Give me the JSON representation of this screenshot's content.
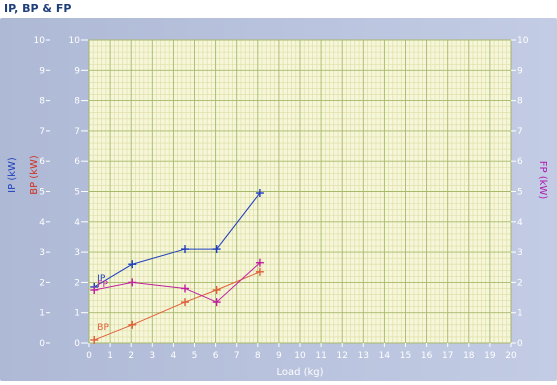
{
  "title": "IP, BP & FP",
  "chart_data": {
    "type": "line",
    "title": "IP, BP & FP",
    "xlabel": "Load (kg)",
    "xlim": [
      0,
      20
    ],
    "x_ticks": [
      "0",
      "1",
      "2",
      "3",
      "4",
      "5",
      "6",
      "7",
      "8",
      "9",
      "10",
      "11",
      "12",
      "13",
      "14",
      "15",
      "16",
      "17",
      "18",
      "19",
      "20"
    ],
    "y_ticks": [
      "0",
      "1",
      "2",
      "3",
      "4",
      "5",
      "6",
      "7",
      "8",
      "9",
      "10"
    ],
    "axes": [
      {
        "id": "ip",
        "label": "IP (kW)",
        "side": "left-outer",
        "ylim": [
          0,
          10
        ],
        "color": "#1f3fbf"
      },
      {
        "id": "bp",
        "label": "BP (kW)",
        "side": "left-inner",
        "ylim": [
          0,
          10
        ],
        "color": "#d03020"
      },
      {
        "id": "fp",
        "label": "FP (kW)",
        "side": "right",
        "ylim": [
          0,
          10
        ],
        "color": "#b01ab0"
      }
    ],
    "grid": true,
    "series": [
      {
        "name": "IP",
        "axis": "ip",
        "color": "#1f3fbf",
        "marker": "+",
        "x": [
          0.25,
          2.05,
          4.55,
          6.05,
          8.1
        ],
        "y": [
          1.85,
          2.6,
          3.1,
          3.1,
          4.95
        ]
      },
      {
        "name": "BP",
        "axis": "bp",
        "color": "#e0603a",
        "marker": "+",
        "x": [
          0.25,
          2.05,
          4.55,
          6.05,
          8.1
        ],
        "y": [
          0.1,
          0.6,
          1.35,
          1.75,
          2.35
        ]
      },
      {
        "name": "FP",
        "axis": "fp",
        "color": "#c020a0",
        "marker": "+",
        "x": [
          0.25,
          2.05,
          4.55,
          6.05,
          8.1
        ],
        "y": [
          1.75,
          2.0,
          1.8,
          1.35,
          2.65
        ]
      }
    ]
  }
}
